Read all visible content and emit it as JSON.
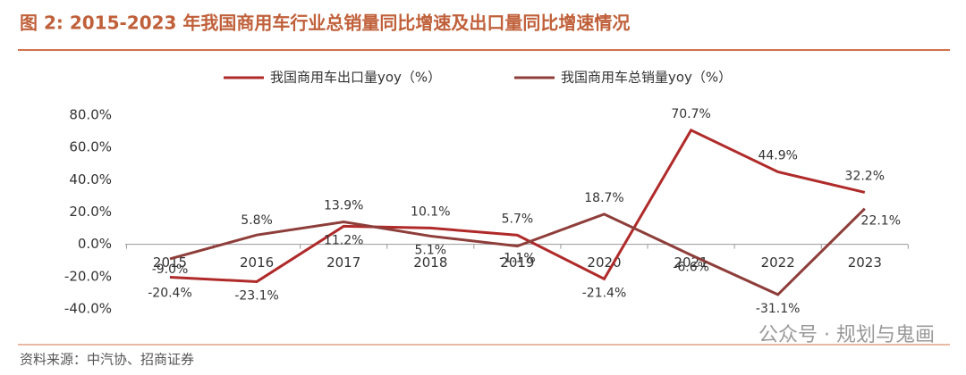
{
  "chart_data": {
    "type": "line",
    "title": "图 2:  2015-2023 年我国商用车行业总销量同比增速及出口量同比增速情况",
    "source": "资料来源：中汽协、招商证券",
    "watermark": "公众号 · 规划与鬼画",
    "categories": [
      "2015",
      "2016",
      "2017",
      "2018",
      "2019",
      "2020",
      "2021",
      "2022",
      "2023"
    ],
    "series": [
      {
        "name": "我国商用车出口量yoy（%）",
        "color": "#b02a2a",
        "values": [
          -20.4,
          -23.1,
          11.2,
          10.1,
          5.7,
          -21.4,
          70.7,
          44.9,
          32.2
        ],
        "value_labels": [
          "-20.4%",
          "-23.1%",
          "11.2%",
          "10.1%",
          "5.7%",
          "-21.4%",
          "70.7%",
          "44.9%",
          "32.2%"
        ]
      },
      {
        "name": "我国商用车总销量yoy（%）",
        "color": "#8e3e3a",
        "values": [
          -9.0,
          5.8,
          13.9,
          5.1,
          -1.1,
          18.7,
          -6.6,
          -31.1,
          22.1
        ],
        "value_labels": [
          "-9.0%",
          "5.8%",
          "13.9%",
          "5.1%",
          "-1.1%",
          "18.7%",
          "-6.6%",
          "-31.1%",
          "22.1%"
        ]
      }
    ],
    "ylim": [
      -40,
      80
    ],
    "yticks": [
      {
        "value": -40,
        "label": "-40.0%"
      },
      {
        "value": -20,
        "label": "-20.0%"
      },
      {
        "value": 0,
        "label": "0.0%"
      },
      {
        "value": 20,
        "label": "20.0%"
      },
      {
        "value": 40,
        "label": "40.0%"
      },
      {
        "value": 60,
        "label": "60.0%"
      },
      {
        "value": 80,
        "label": "80.0%"
      }
    ]
  }
}
